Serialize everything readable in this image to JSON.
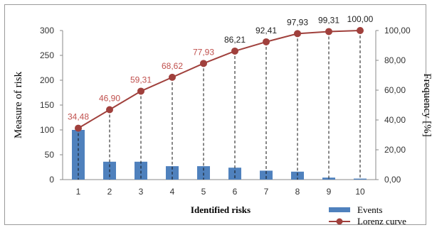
{
  "chart_data": {
    "type": "bar",
    "categories": [
      "1",
      "2",
      "3",
      "4",
      "5",
      "6",
      "7",
      "8",
      "9",
      "10"
    ],
    "series": [
      {
        "name": "Events",
        "type": "bar",
        "axis": "left",
        "values": [
          100,
          36,
          36,
          27,
          27,
          24,
          18,
          16,
          4,
          2
        ]
      },
      {
        "name": "Lorenz curve",
        "type": "line",
        "axis": "right",
        "values": [
          34.48,
          46.9,
          59.31,
          68.62,
          77.93,
          86.21,
          92.41,
          97.93,
          99.31,
          100.0
        ],
        "labels": [
          "34,48",
          "46,90",
          "59,31",
          "68,62",
          "77,93",
          "86,21",
          "92,41",
          "97,93",
          "99,31",
          "100,00"
        ]
      }
    ],
    "xlabel": "Identified risks",
    "ylabel": "Measure of risk",
    "y2label": "Frequency [%]",
    "ylim": [
      0,
      300
    ],
    "y2lim": [
      0,
      100
    ],
    "yticks": [
      "0",
      "50",
      "100",
      "150",
      "200",
      "250",
      "300"
    ],
    "y2ticks": [
      "0,00",
      "20,00",
      "40,00",
      "60,00",
      "80,00",
      "100,00"
    ],
    "legend_position": "bottom-right",
    "colors": {
      "bar": "#4f81bd",
      "line": "#a0403c",
      "label_low": "#c0504d",
      "label_high": "#222222"
    }
  }
}
